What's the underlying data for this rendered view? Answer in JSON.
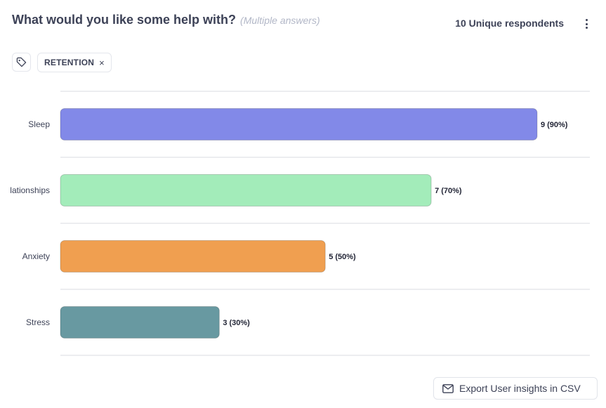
{
  "header": {
    "title": "What would you like some help with?",
    "subtitle": "(Multiple answers)",
    "respondents": "10 Unique respondents"
  },
  "filters": {
    "tag_icon": "tag-icon",
    "chips": [
      {
        "label": "RETENTION",
        "remove_icon": "close-icon",
        "remove_glyph": "×"
      }
    ]
  },
  "menu_icon": "vertical-ellipsis-icon",
  "chart_data": {
    "type": "bar",
    "orientation": "horizontal",
    "title": "What would you like some help with?",
    "subtitle": "(Multiple answers)",
    "categories": [
      "Sleep",
      "Relationships",
      "Anxiety",
      "Stress"
    ],
    "values": [
      9,
      7,
      5,
      3
    ],
    "percentages": [
      90,
      70,
      50,
      30
    ],
    "data_labels": [
      "9 (90%)",
      "7 (70%)",
      "5 (50%)",
      "3 (30%)"
    ],
    "colors": [
      "#8289e8",
      "#a3ecba",
      "#f09f50",
      "#6899a1"
    ],
    "xlim": [
      0,
      10
    ],
    "grid": true,
    "legend": "none"
  },
  "footer": {
    "export_label": "Export User insights in CSV",
    "export_icon": "mail-icon"
  }
}
